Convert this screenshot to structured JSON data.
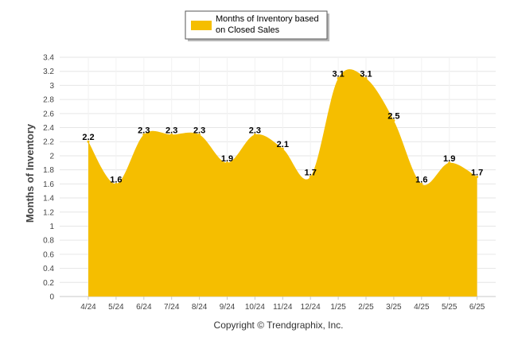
{
  "chart_data": {
    "type": "area",
    "categories": [
      "4/24",
      "5/24",
      "6/24",
      "7/24",
      "8/24",
      "9/24",
      "10/24",
      "11/24",
      "12/24",
      "1/25",
      "2/25",
      "3/25",
      "4/25",
      "5/25",
      "6/25"
    ],
    "series": [
      {
        "name": "Months of Inventory based on Closed Sales",
        "values": [
          2.2,
          1.6,
          2.3,
          2.3,
          2.3,
          1.9,
          2.3,
          2.1,
          1.7,
          3.1,
          3.1,
          2.5,
          1.6,
          1.9,
          1.7
        ]
      }
    ],
    "ylabel": "Months of Inventory",
    "xlabel": "",
    "ylim": [
      0,
      3.4
    ],
    "yticks": [
      0,
      0.2,
      0.4,
      0.6,
      0.8,
      1,
      1.2,
      1.4,
      1.6,
      1.8,
      2,
      2.2,
      2.4,
      2.6,
      2.8,
      3,
      3.2,
      3.4
    ],
    "grid": true,
    "legend_position": "top-center",
    "fill_color": "#F5BE00"
  },
  "legend": {
    "line1": "Months of Inventory based",
    "line2": "on Closed Sales"
  },
  "credit": "Copyright © Trendgraphix, Inc."
}
